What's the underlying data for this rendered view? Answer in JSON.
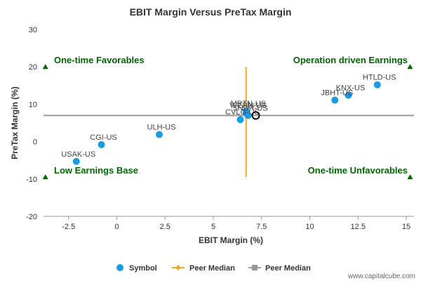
{
  "chart_data": {
    "type": "scatter",
    "title": "EBIT Margin Versus PreTax Margin",
    "xlabel": "EBIT Margin (%)",
    "ylabel": "PreTax Margin (%)",
    "xlim": [
      -3.8,
      15.4
    ],
    "ylim": [
      -20,
      30
    ],
    "xticks": [
      -2.5,
      0,
      2.5,
      5,
      7.5,
      10,
      12.5,
      15
    ],
    "xtick_labels": [
      "-2.5",
      "0",
      "2.5",
      "5",
      "7.5",
      "10",
      "12.5",
      "15"
    ],
    "yticks": [
      -20,
      -10,
      0,
      10,
      20,
      30
    ],
    "ytick_labels": [
      "-20",
      "-10",
      "0",
      "10",
      "20",
      "30"
    ],
    "grid": false,
    "colors": {
      "symbol": "#1a9be6",
      "peer_median_x": "#f5a623",
      "peer_median_y": "#999999",
      "quadrant": "#006600"
    },
    "points": [
      {
        "label": "HTLD-US",
        "x": 13.5,
        "y": 15.2
      },
      {
        "label": "KNX-US",
        "x": 12.0,
        "y": 12.4
      },
      {
        "label": "JBHT-US",
        "x": 11.3,
        "y": 11.1
      },
      {
        "label": "MRTN-US",
        "x": 6.7,
        "y": 8.2
      },
      {
        "label": "WERN-US",
        "x": 6.7,
        "y": 7.7
      },
      {
        "label": "SNDR-US",
        "x": 6.8,
        "y": 7.0
      },
      {
        "label": "CVLG-US",
        "x": 6.4,
        "y": 5.9
      },
      {
        "label": "ULH-US",
        "x": 2.2,
        "y": 1.9
      },
      {
        "label": "CGI-US",
        "x": -0.8,
        "y": -0.8
      },
      {
        "label": "USAK-US",
        "x": -2.1,
        "y": -5.3
      }
    ],
    "focus_point": {
      "label": "",
      "x": 7.2,
      "y": 7.0
    },
    "peer_median": {
      "x": 6.7,
      "y": 7.0,
      "x_line_range": [
        -9.5,
        20
      ],
      "y_line_range": [
        -3.8,
        15.4
      ]
    },
    "quadrant_labels": {
      "top_left": "One-time Favorables",
      "top_right": "Operation driven Earnings",
      "bottom_left": "Low Earnings Base",
      "bottom_right": "One-time Unfavorables"
    },
    "quadrant_markers": [
      {
        "x": -3.7,
        "y": 20
      },
      {
        "x": 15.2,
        "y": 20
      },
      {
        "x": -3.7,
        "y": -9.5
      },
      {
        "x": 15.2,
        "y": -9.5
      }
    ],
    "legend": {
      "position": "bottom",
      "items": [
        "Symbol",
        "Peer Median",
        "Peer Median"
      ]
    }
  },
  "watermark": "www.capitalcube.com"
}
